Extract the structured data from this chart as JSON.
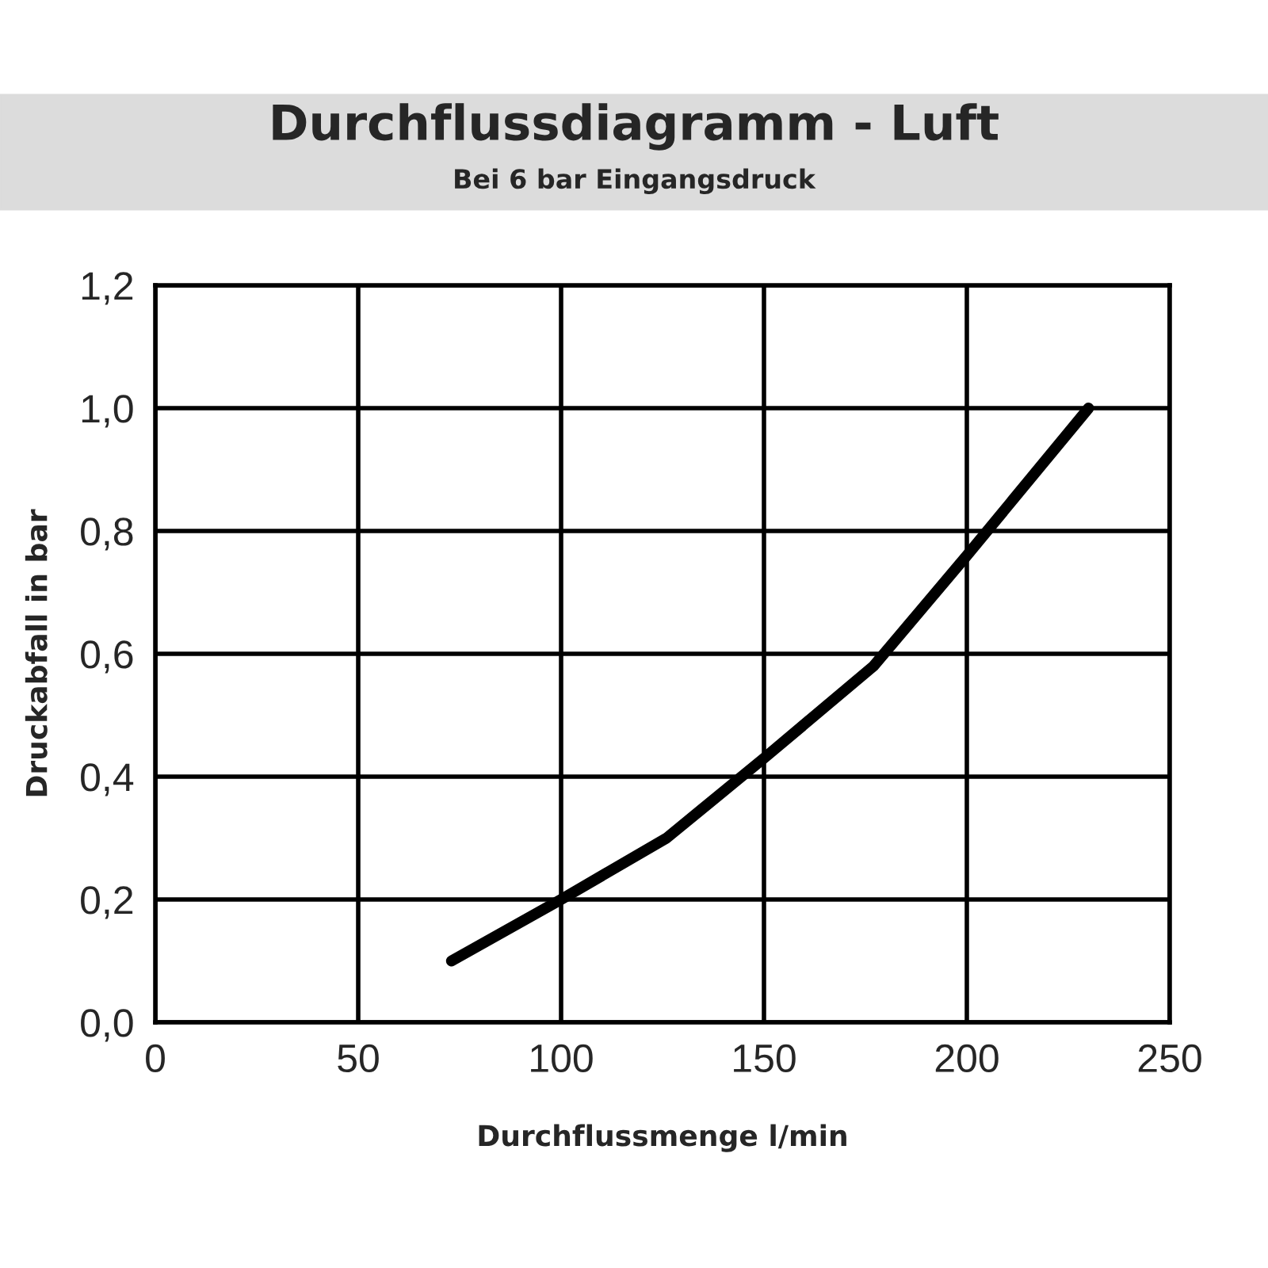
{
  "chart_data": {
    "type": "line",
    "title": "Durchflussdiagramm - Luft",
    "subtitle": "Bei 6 bar Eingangsdruck",
    "xlabel": "Durchflussmenge l/min",
    "ylabel": "Druckabfall in bar",
    "series": [
      {
        "color": "#000000",
        "x": [
          73,
          100,
          126,
          150,
          177,
          200,
          230
        ],
        "values": [
          0.1,
          0.2,
          0.3,
          0.43,
          0.58,
          0.76,
          1.0
        ]
      }
    ],
    "xlim": [
      0,
      250
    ],
    "xticks": [
      0,
      50,
      100,
      150,
      200,
      250
    ],
    "ylim": [
      0,
      1.2
    ],
    "yticks": [
      {
        "value": 0,
        "label": "0,0"
      },
      {
        "value": 0.2,
        "label": "0,2"
      },
      {
        "value": 0.4,
        "label": "0,4"
      },
      {
        "value": 0.6,
        "label": "0,6"
      },
      {
        "value": 0.8,
        "label": "0,8"
      },
      {
        "value": 1.0,
        "label": "1,0"
      },
      {
        "value": 1.2,
        "label": "1,2"
      }
    ],
    "grid": true,
    "marker": "none",
    "line_style": "solid"
  }
}
